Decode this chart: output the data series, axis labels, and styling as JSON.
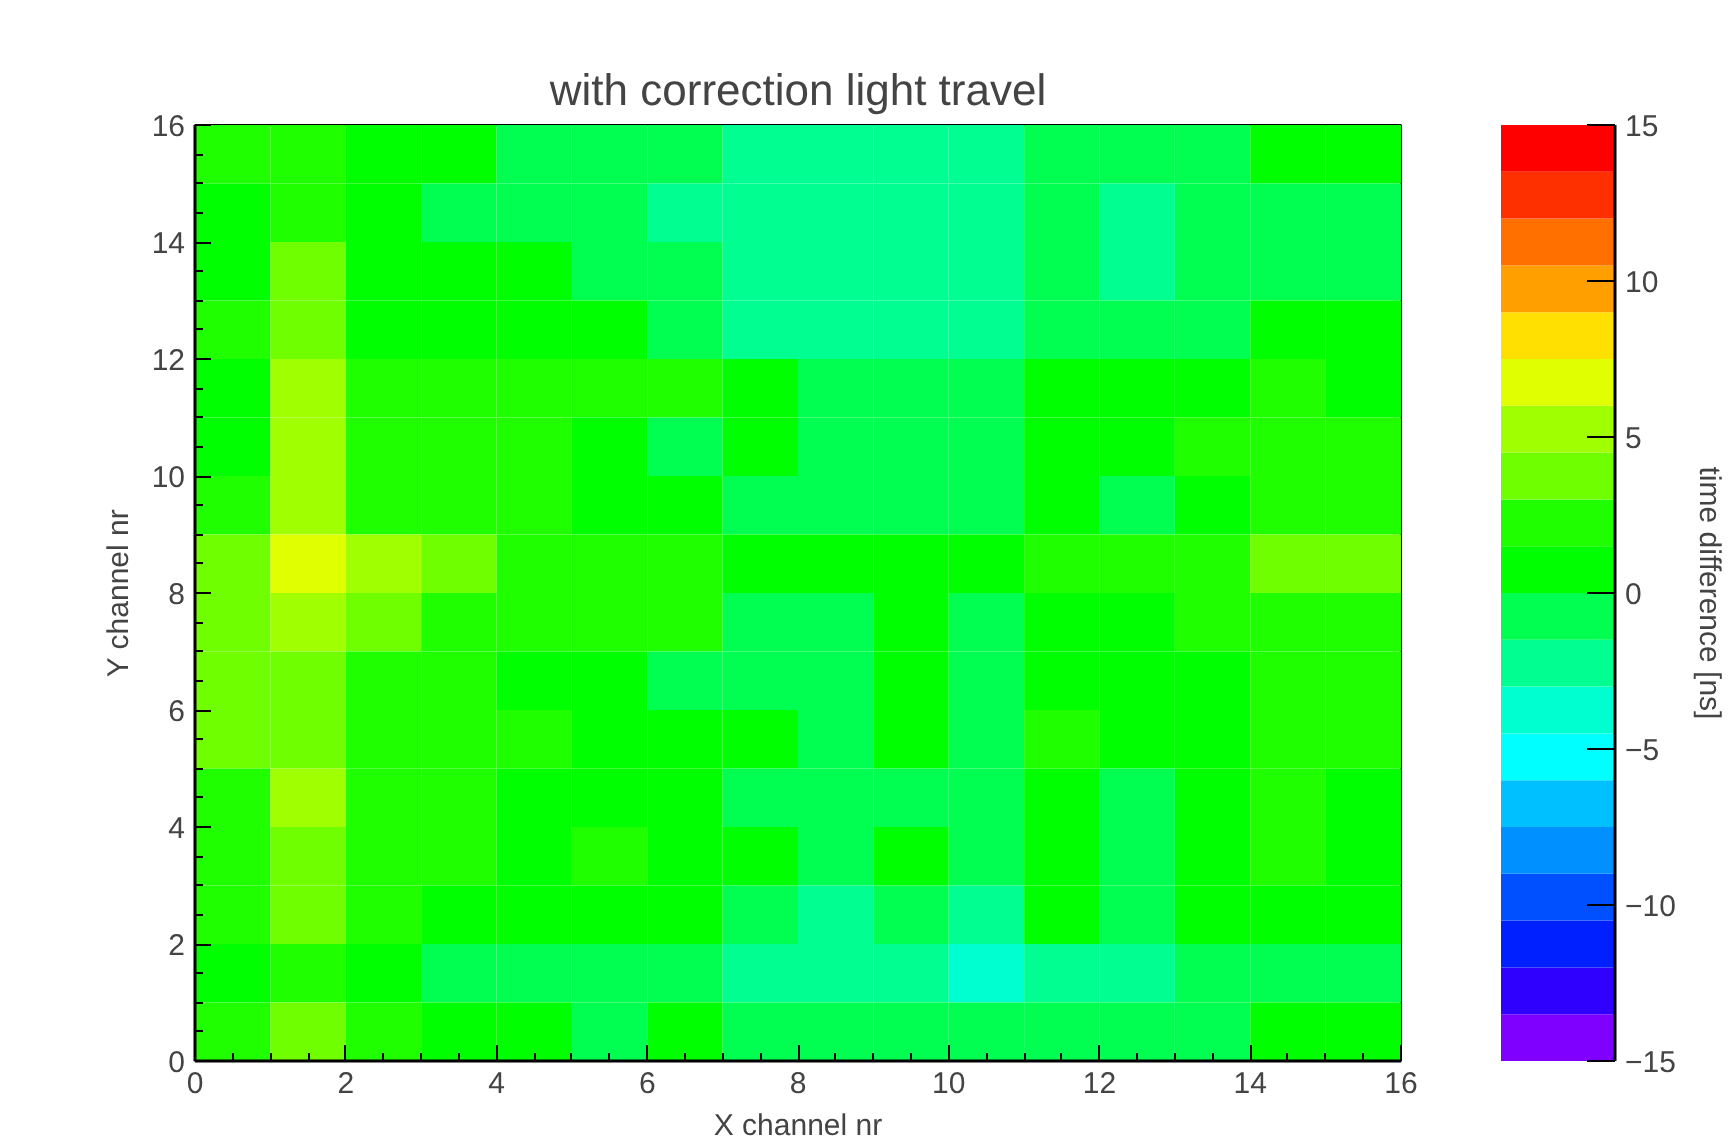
{
  "chart_data": {
    "type": "heatmap",
    "title": "with correction light travel",
    "xlabel": "X channel nr",
    "ylabel": "Y channel nr",
    "clabel": "time difference [ns]",
    "xlim": [
      0,
      16
    ],
    "ylim": [
      0,
      16
    ],
    "xticks": [
      0,
      2,
      4,
      6,
      8,
      10,
      12,
      14,
      16
    ],
    "yticks": [
      0,
      2,
      4,
      6,
      8,
      10,
      12,
      14,
      16
    ],
    "clim": [
      -15,
      15
    ],
    "cticks": [
      -15,
      -10,
      -5,
      0,
      5,
      10,
      15
    ],
    "colors": [
      "#8000ff",
      "#3000ff",
      "#0020ff",
      "#0050ff",
      "#0090ff",
      "#00c0ff",
      "#00ffff",
      "#00ffd0",
      "#00ff90",
      "#00ff50",
      "#00ff00",
      "#20ff00",
      "#70ff00",
      "#a0ff00",
      "#e0ff00",
      "#ffe000",
      "#ffa000",
      "#ff7000",
      "#ff3000",
      "#ff0000"
    ],
    "cells": [
      [
        2.25,
        2.25,
        0.75,
        0.75,
        -0.75,
        -0.75,
        -0.75,
        -2.25,
        -2.25,
        -2.25,
        -2.25,
        -0.75,
        -0.75,
        -0.75,
        0.75,
        0.75
      ],
      [
        0.75,
        2.25,
        0.75,
        -0.75,
        -0.75,
        -0.75,
        -2.25,
        -2.25,
        -2.25,
        -2.25,
        -2.25,
        -0.75,
        -2.25,
        -0.75,
        -0.75,
        -0.75
      ],
      [
        0.75,
        3.75,
        0.75,
        0.75,
        0.75,
        -0.75,
        -0.75,
        -2.25,
        -2.25,
        -2.25,
        -2.25,
        -0.75,
        -2.25,
        -0.75,
        -0.75,
        -0.75
      ],
      [
        2.25,
        3.75,
        0.75,
        0.75,
        0.75,
        0.75,
        -0.75,
        -2.25,
        -2.25,
        -2.25,
        -2.25,
        -0.75,
        -0.75,
        -0.75,
        0.75,
        0.75
      ],
      [
        0.75,
        5.25,
        2.25,
        2.25,
        2.25,
        2.25,
        2.25,
        0.75,
        -0.75,
        -0.75,
        -0.75,
        0.75,
        0.75,
        0.75,
        2.25,
        0.75
      ],
      [
        0.75,
        5.25,
        2.25,
        2.25,
        2.25,
        0.75,
        -0.75,
        0.75,
        -0.75,
        -0.75,
        -0.75,
        0.75,
        0.75,
        2.25,
        2.25,
        2.25
      ],
      [
        2.25,
        5.25,
        2.25,
        2.25,
        2.25,
        0.75,
        0.75,
        -0.75,
        -0.75,
        -0.75,
        -0.75,
        0.75,
        -0.75,
        0.75,
        2.25,
        2.25
      ],
      [
        3.75,
        6.75,
        5.25,
        3.75,
        2.25,
        2.25,
        2.25,
        0.75,
        0.75,
        0.75,
        0.75,
        2.25,
        2.25,
        2.25,
        3.75,
        3.75
      ],
      [
        3.75,
        5.25,
        3.75,
        2.25,
        2.25,
        2.25,
        2.25,
        -0.75,
        -0.75,
        0.75,
        -0.75,
        0.75,
        0.75,
        2.25,
        2.25,
        2.25
      ],
      [
        3.75,
        3.75,
        2.25,
        2.25,
        0.75,
        0.75,
        -0.75,
        -0.75,
        -0.75,
        0.75,
        -0.75,
        0.75,
        0.75,
        0.75,
        2.25,
        2.25
      ],
      [
        3.75,
        3.75,
        2.25,
        2.25,
        2.25,
        0.75,
        0.75,
        0.75,
        -0.75,
        0.75,
        -0.75,
        2.25,
        0.75,
        0.75,
        2.25,
        2.25
      ],
      [
        2.25,
        5.25,
        2.25,
        2.25,
        0.75,
        0.75,
        0.75,
        -0.75,
        -0.75,
        -0.75,
        -0.75,
        0.75,
        -0.75,
        0.75,
        2.25,
        0.75
      ],
      [
        2.25,
        3.75,
        2.25,
        2.25,
        0.75,
        2.25,
        0.75,
        0.75,
        -0.75,
        0.75,
        -0.75,
        0.75,
        -0.75,
        0.75,
        2.25,
        0.75
      ],
      [
        2.25,
        3.75,
        2.25,
        0.75,
        0.75,
        0.75,
        0.75,
        -0.75,
        -2.25,
        -0.75,
        -2.25,
        0.75,
        -0.75,
        0.75,
        0.75,
        0.75
      ],
      [
        0.75,
        2.25,
        0.75,
        -0.75,
        -0.75,
        -0.75,
        -0.75,
        -2.25,
        -2.25,
        -2.25,
        -3.75,
        -2.25,
        -2.25,
        -0.75,
        -0.75,
        -0.75
      ],
      [
        2.25,
        3.75,
        2.25,
        0.75,
        0.75,
        -0.75,
        0.75,
        -0.75,
        -0.75,
        -0.75,
        -0.75,
        -0.75,
        -0.75,
        -0.75,
        0.75,
        0.75
      ]
    ]
  }
}
